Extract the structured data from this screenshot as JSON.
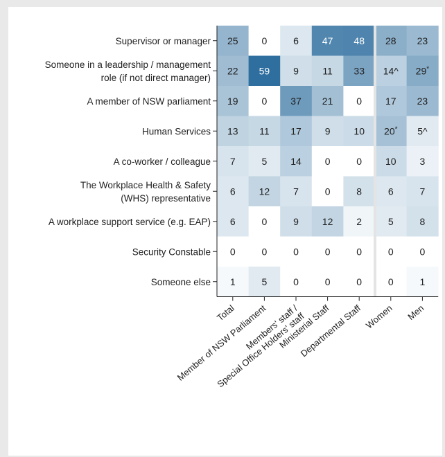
{
  "chart_data": {
    "type": "heatmap",
    "rows": [
      "Supervisor or manager",
      "Someone in a leadership / management role (if not direct manager)",
      "A member of NSW parliament",
      "Human Services",
      "A co-worker / colleague",
      "The Workplace Health & Safety (WHS) representative",
      "A workplace support service (e.g. EAP)",
      "Security Constable",
      "Someone else"
    ],
    "row_label_lines": [
      [
        "Supervisor or manager"
      ],
      [
        "Someone in a leadership / management",
        "role (if not direct manager)"
      ],
      [
        "A member of NSW parliament"
      ],
      [
        "Human Services"
      ],
      [
        "A co-worker / colleague"
      ],
      [
        "The Workplace Health & Safety",
        "(WHS) representative"
      ],
      [
        "A workplace support service (e.g. EAP)"
      ],
      [
        "Security Constable"
      ],
      [
        "Someone else"
      ]
    ],
    "columns": [
      "Total",
      "Member of NSW Parliament",
      "Members' staff / Special Office Holders' staff",
      "Ministerial Staff",
      "Departmental Staff",
      "Women",
      "Men"
    ],
    "column_label_lines": [
      [
        "Total"
      ],
      [
        "Member of NSW Parliament"
      ],
      [
        "Members' staff /",
        "Special Office Holders' staff"
      ],
      [
        "Ministerial Staff"
      ],
      [
        "Departmental Staff"
      ],
      [
        "Women"
      ],
      [
        "Men"
      ]
    ],
    "values": [
      [
        25,
        0,
        6,
        47,
        48,
        28,
        23
      ],
      [
        22,
        59,
        9,
        11,
        33,
        14,
        29
      ],
      [
        19,
        0,
        37,
        21,
        0,
        17,
        23
      ],
      [
        13,
        11,
        17,
        9,
        10,
        20,
        5
      ],
      [
        7,
        5,
        14,
        0,
        0,
        10,
        3
      ],
      [
        6,
        12,
        7,
        0,
        8,
        6,
        7
      ],
      [
        6,
        0,
        9,
        12,
        2,
        5,
        8
      ],
      [
        0,
        0,
        0,
        0,
        0,
        0,
        0
      ],
      [
        1,
        5,
        0,
        0,
        0,
        0,
        1
      ]
    ],
    "markers": [
      [
        null,
        null,
        null,
        null,
        null,
        null,
        null
      ],
      [
        null,
        null,
        null,
        null,
        null,
        "^",
        "*"
      ],
      [
        null,
        null,
        null,
        null,
        null,
        null,
        null
      ],
      [
        null,
        null,
        null,
        null,
        null,
        "*",
        "^"
      ],
      [
        null,
        null,
        null,
        null,
        null,
        null,
        null
      ],
      [
        null,
        null,
        null,
        null,
        null,
        null,
        null
      ],
      [
        null,
        null,
        null,
        null,
        null,
        null,
        null
      ],
      [
        null,
        null,
        null,
        null,
        null,
        null,
        null
      ],
      [
        null,
        null,
        null,
        null,
        null,
        null,
        null
      ]
    ],
    "color_scale": {
      "min": 0,
      "max": 59,
      "low": "#ffffff",
      "high": "#2f6f9f"
    },
    "colors": {
      "background": "#e9e9ea",
      "panel": "#ffffff",
      "separator": "#e4e4e4"
    }
  }
}
